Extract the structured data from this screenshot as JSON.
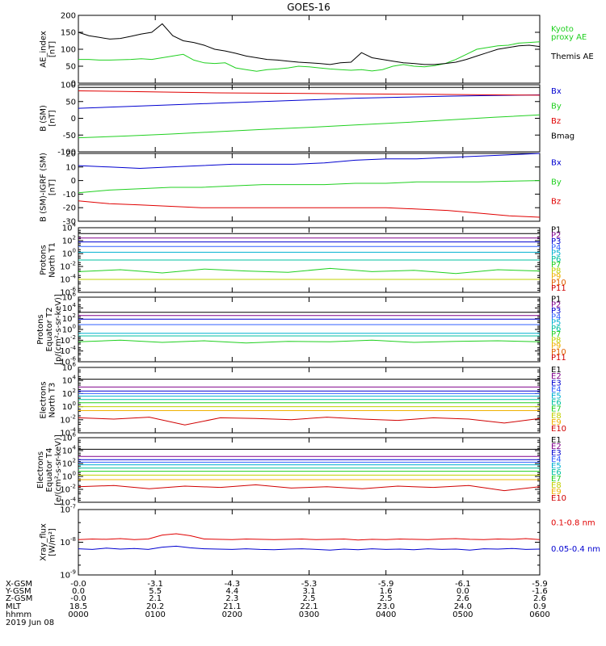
{
  "title": "GOES-16",
  "colors": {
    "axis": "#000000",
    "black": "#000000",
    "red": "#e00000",
    "green": "#20d020",
    "blue": "#0000d0",
    "P": [
      "#000000",
      "#80008c",
      "#0000d0",
      "#3060ff",
      "#00b0d0",
      "#00c0a0",
      "#20d020",
      "#c0d000",
      "#f0b000",
      "#e06000",
      "#d00000"
    ],
    "E": [
      "#000000",
      "#80008c",
      "#0000d0",
      "#3060ff",
      "#00b0d0",
      "#00c0a0",
      "#20d020",
      "#c0d000",
      "#f0b000",
      "#e06000",
      "#d00000"
    ]
  },
  "chart_data": [
    {
      "type": "line",
      "ylabel": [
        "AE_index",
        "[nT]"
      ],
      "ylim": [
        0,
        200
      ],
      "yticks": [
        0,
        50,
        100,
        150,
        200
      ],
      "series": [
        {
          "name": "Kyoto\nproxy AE",
          "color": "green",
          "values": [
            70,
            70,
            68,
            68,
            69,
            70,
            72,
            70,
            75,
            80,
            85,
            68,
            60,
            58,
            60,
            45,
            40,
            35,
            40,
            42,
            45,
            50,
            48,
            45,
            42,
            40,
            38,
            40,
            36,
            40,
            50,
            55,
            50,
            48,
            52,
            58,
            70,
            85,
            100,
            105,
            110,
            112,
            118,
            120,
            122
          ]
        },
        {
          "name": "Themis AE",
          "color": "black",
          "values": [
            150,
            140,
            135,
            130,
            132,
            138,
            145,
            150,
            175,
            140,
            125,
            120,
            112,
            100,
            95,
            88,
            80,
            75,
            70,
            68,
            65,
            62,
            60,
            58,
            55,
            60,
            62,
            90,
            75,
            70,
            65,
            60,
            58,
            55,
            55,
            58,
            62,
            70,
            80,
            90,
            100,
            105,
            110,
            112,
            108
          ]
        }
      ]
    },
    {
      "type": "line",
      "ylabel": [
        "B (SM)",
        "[nT]"
      ],
      "ylim": [
        -100,
        100
      ],
      "yticks": [
        -100,
        -50,
        0,
        50,
        100
      ],
      "series": [
        {
          "name": "Bx",
          "color": "blue",
          "values": [
            30,
            35,
            40,
            45,
            50,
            55,
            60,
            63,
            66,
            68,
            70
          ]
        },
        {
          "name": "By",
          "color": "green",
          "values": [
            -58,
            -53,
            -47,
            -40,
            -33,
            -27,
            -20,
            -13,
            -5,
            3,
            10
          ]
        },
        {
          "name": "Bz",
          "color": "red",
          "values": [
            82,
            80,
            78,
            76,
            75,
            74,
            73,
            72,
            71,
            70,
            69
          ]
        },
        {
          "name": "Bmag",
          "color": "black",
          "values": [
            92,
            92,
            92,
            92,
            92,
            92,
            92,
            92,
            92,
            92,
            92
          ]
        }
      ]
    },
    {
      "type": "line",
      "ylabel": [
        "B (SM)-IGRF (SM)",
        "[nT]"
      ],
      "ylim": [
        -30,
        20
      ],
      "yticks": [
        -30,
        -20,
        -10,
        0,
        10,
        20
      ],
      "series": [
        {
          "name": "Bx",
          "color": "blue",
          "values": [
            11,
            10,
            9,
            10,
            11,
            12,
            12,
            12,
            13,
            15,
            16,
            16,
            17,
            18,
            19,
            20
          ]
        },
        {
          "name": "By",
          "color": "green",
          "values": [
            -9,
            -7,
            -6,
            -5,
            -5,
            -4,
            -3,
            -3,
            -3,
            -2,
            -2,
            -1,
            -1,
            -1,
            -0.5,
            0
          ]
        },
        {
          "name": "Bz",
          "color": "red",
          "values": [
            -15,
            -17,
            -18,
            -19,
            -20,
            -20,
            -20,
            -20,
            -20,
            -20,
            -20,
            -21,
            -22,
            -24,
            -26,
            -27
          ]
        }
      ]
    },
    {
      "type": "line",
      "ylabel": [
        "Protons",
        "North T1"
      ],
      "yscale": "log",
      "ylim": [
        -6,
        4
      ],
      "yticks": [
        -6,
        -4,
        -2,
        0,
        2,
        4
      ],
      "series": [
        {
          "name": "P1",
          "color": "P0",
          "values": [
            3.1,
            3.1,
            3.1
          ]
        },
        {
          "name": "P2",
          "color": "P1",
          "values": [
            2.4,
            2.4,
            2.4
          ]
        },
        {
          "name": "P3",
          "color": "P2",
          "values": [
            1.8,
            1.8,
            1.8
          ]
        },
        {
          "name": "P4",
          "color": "P3",
          "values": [
            1.1,
            1.1,
            1.1
          ]
        },
        {
          "name": "P5",
          "color": "P4",
          "values": [
            0.2,
            0.2,
            0.2
          ]
        },
        {
          "name": "P6",
          "color": "P5",
          "values": [
            -1.0,
            -1.0,
            -1.0
          ]
        },
        {
          "name": "P7",
          "color": "P6",
          "values": [
            -2.8,
            -2.5,
            -3.0,
            -2.4,
            -2.7,
            -2.9,
            -2.3,
            -2.8,
            -2.6,
            -3.1,
            -2.5,
            -2.7
          ]
        },
        {
          "name": "P8",
          "color": "P7",
          "values": [
            -4.0,
            -4.0,
            -4.0
          ]
        },
        {
          "name": "P9",
          "color": "P8",
          "values": []
        },
        {
          "name": "P10",
          "color": "P9",
          "values": []
        },
        {
          "name": "P11",
          "color": "P10",
          "values": []
        }
      ]
    },
    {
      "type": "line",
      "ylabel": [
        "Protons",
        "Equator T2",
        "[p/(cm²-s-sr-keV)]"
      ],
      "yscale": "log",
      "ylim": [
        -6,
        6
      ],
      "yticks": [
        -6,
        -4,
        -2,
        0,
        2,
        4,
        6
      ],
      "series": [
        {
          "name": "P1",
          "color": "P0",
          "values": [
            3.2,
            3.2,
            3.2
          ]
        },
        {
          "name": "P2",
          "color": "P1",
          "values": [
            2.6,
            2.6,
            2.6
          ]
        },
        {
          "name": "P3",
          "color": "P2",
          "values": [
            1.9,
            1.9,
            1.9
          ]
        },
        {
          "name": "P4",
          "color": "P3",
          "values": [
            0.9,
            0.9,
            0.9
          ]
        },
        {
          "name": "P5",
          "color": "P4",
          "values": [
            -0.7,
            -0.7,
            -0.7
          ]
        },
        {
          "name": "P6",
          "color": "P5",
          "values": [
            -1.2,
            -1.2,
            -1.2
          ]
        },
        {
          "name": "P7",
          "color": "P6",
          "values": [
            -2.3,
            -2.0,
            -2.4,
            -2.1,
            -2.5,
            -2.2,
            -2.3,
            -2.0,
            -2.4,
            -2.2,
            -2.1,
            -2.3
          ]
        },
        {
          "name": "P8",
          "color": "P7",
          "values": []
        },
        {
          "name": "P9",
          "color": "P8",
          "values": []
        },
        {
          "name": "P10",
          "color": "P9",
          "values": []
        },
        {
          "name": "P11",
          "color": "P10",
          "values": []
        }
      ]
    },
    {
      "type": "line",
      "ylabel": [
        "Electrons",
        "North T3"
      ],
      "yscale": "log",
      "ylim": [
        -4,
        6
      ],
      "yticks": [
        -4,
        -2,
        0,
        2,
        4,
        6
      ],
      "series": [
        {
          "name": "E1",
          "color": "E0",
          "values": [
            4.2,
            4.2,
            4.2
          ]
        },
        {
          "name": "E2",
          "color": "E1",
          "values": [
            3.0,
            3.0,
            3.0
          ]
        },
        {
          "name": "E3",
          "color": "E2",
          "values": [
            2.4,
            2.4,
            2.4
          ]
        },
        {
          "name": "E4",
          "color": "E3",
          "values": [
            2.0,
            2.0,
            2.0
          ]
        },
        {
          "name": "E5",
          "color": "E4",
          "values": [
            1.6,
            1.6,
            1.6
          ]
        },
        {
          "name": "E6",
          "color": "E5",
          "values": [
            1.1,
            1.1,
            1.1
          ]
        },
        {
          "name": "E7",
          "color": "E6",
          "values": [
            0.6,
            0.6,
            0.6
          ]
        },
        {
          "name": "E8",
          "color": "E7",
          "values": [
            0.0,
            0.0,
            0.0
          ]
        },
        {
          "name": "E9",
          "color": "E8",
          "values": [
            -0.6,
            -0.6,
            -0.6
          ]
        },
        {
          "name": "E10",
          "color": "E10",
          "values": [
            -1.7,
            -1.9,
            -1.6,
            -2.8,
            -1.7,
            -1.8,
            -2.0,
            -1.6,
            -1.9,
            -2.1,
            -1.7,
            -1.9,
            -2.5,
            -1.8
          ]
        }
      ]
    },
    {
      "type": "line",
      "ylabel": [
        "Electrons",
        "Equator T4",
        "[e/(cm²-s-sr-keV)]"
      ],
      "yscale": "log",
      "ylim": [
        -4,
        6
      ],
      "yticks": [
        -4,
        -2,
        0,
        2,
        4,
        6
      ],
      "series": [
        {
          "name": "E1",
          "color": "E0",
          "values": [
            4.2,
            4.2,
            4.2
          ]
        },
        {
          "name": "E2",
          "color": "E1",
          "values": [
            3.1,
            3.1,
            3.1
          ]
        },
        {
          "name": "E3",
          "color": "E2",
          "values": [
            2.6,
            2.6,
            2.6
          ]
        },
        {
          "name": "E4",
          "color": "E3",
          "values": [
            2.2,
            2.2,
            2.2
          ]
        },
        {
          "name": "E5",
          "color": "E4",
          "values": [
            1.8,
            1.8,
            1.8
          ]
        },
        {
          "name": "E6",
          "color": "E5",
          "values": [
            1.3,
            1.3,
            1.3
          ]
        },
        {
          "name": "E7",
          "color": "E6",
          "values": [
            0.8,
            0.8,
            0.8
          ]
        },
        {
          "name": "E8",
          "color": "E7",
          "values": [
            0.2,
            0.2,
            0.2
          ]
        },
        {
          "name": "E9",
          "color": "E8",
          "values": [
            -0.5,
            -0.5,
            -0.5
          ]
        },
        {
          "name": "E10",
          "color": "E10",
          "values": [
            -1.6,
            -1.4,
            -1.9,
            -1.5,
            -1.7,
            -1.3,
            -1.8,
            -1.6,
            -1.9,
            -1.5,
            -1.7,
            -1.4,
            -2.2,
            -1.6
          ]
        }
      ]
    },
    {
      "type": "line",
      "ylabel": [
        "Xray_flux",
        "[W/m²]"
      ],
      "yscale": "log",
      "ylim": [
        -9,
        -7
      ],
      "yticks": [
        -9,
        -8,
        -7
      ],
      "series": [
        {
          "name": "0.1-0.8 nm",
          "color": "red",
          "values": [
            -7.92,
            -7.9,
            -7.91,
            -7.89,
            -7.92,
            -7.9,
            -7.78,
            -7.74,
            -7.8,
            -7.9,
            -7.91,
            -7.92,
            -7.9,
            -7.91,
            -7.92,
            -7.91,
            -7.9,
            -7.92,
            -7.91,
            -7.9,
            -7.93,
            -7.91,
            -7.92,
            -7.9,
            -7.91,
            -7.92,
            -7.9,
            -7.89,
            -7.91,
            -7.92,
            -7.9,
            -7.91,
            -7.89,
            -7.92
          ]
        },
        {
          "name": "0.05-0.4 nm",
          "color": "blue",
          "values": [
            -8.2,
            -8.22,
            -8.18,
            -8.21,
            -8.19,
            -8.22,
            -8.15,
            -8.12,
            -8.17,
            -8.2,
            -8.21,
            -8.22,
            -8.2,
            -8.22,
            -8.23,
            -8.21,
            -8.2,
            -8.22,
            -8.24,
            -8.21,
            -8.23,
            -8.2,
            -8.22,
            -8.21,
            -8.23,
            -8.2,
            -8.22,
            -8.21,
            -8.24,
            -8.2,
            -8.21,
            -8.19,
            -8.22,
            -8.21
          ]
        }
      ]
    }
  ],
  "footer": {
    "row_labels": [
      "X-GSM",
      "Y-GSM",
      "Z-GSM",
      "MLT",
      "hhmm",
      "2019 Jun 08"
    ],
    "columns": [
      [
        "-0.0",
        "0.0",
        "-0.0",
        "18.5",
        "0000"
      ],
      [
        "-3.1",
        "5.5",
        "2.1",
        "20.2",
        "0100"
      ],
      [
        "-4.3",
        "4.4",
        "2.3",
        "21.1",
        "0200"
      ],
      [
        "-5.3",
        "3.1",
        "2.5",
        "22.1",
        "0300"
      ],
      [
        "-5.9",
        "1.6",
        "2.5",
        "23.0",
        "0400"
      ],
      [
        "-6.1",
        "0.0",
        "2.6",
        "24.0",
        "0500"
      ],
      [
        "-5.9",
        "-1.6",
        "2.6",
        "0.9",
        "0600"
      ]
    ]
  }
}
